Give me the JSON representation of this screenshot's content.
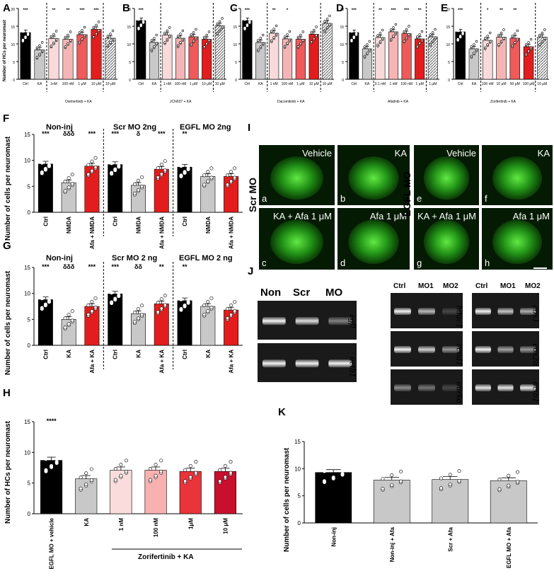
{
  "figure": {
    "panel_labels": [
      "A",
      "B",
      "C",
      "D",
      "E",
      "F",
      "G",
      "H",
      "I",
      "J",
      "K"
    ]
  },
  "panels": {
    "A": {
      "ylabel": "Number of HCs per neuromast",
      "group": "Osimertinib + KA"
    },
    "B": {
      "group": "JCN037 + KA"
    },
    "C": {
      "group": "Dacomitinib + KA"
    },
    "D": {
      "group": "Afatinib + KA"
    },
    "E": {
      "group": "Zorifertinib + KA"
    },
    "F": {
      "ylabel": "Number of cells per neuromast",
      "groups": [
        "Non-inj",
        "Scr MO 2ng",
        "EGFL MO 2ng"
      ]
    },
    "G": {
      "ylabel": "Number of cells per neuromast",
      "groups": [
        "Non-inj",
        "Scr MO 2 ng",
        "EGFL MO 2 ng"
      ]
    },
    "H": {
      "ylabel": "Number of HCs per neuromast",
      "group": "Zorifertinib + KA"
    },
    "I": {
      "left_label": "Scr MO",
      "right_label": "EGFL MO",
      "tiles": [
        {
          "letter": "a",
          "text": "Vehicle"
        },
        {
          "letter": "b",
          "text": "KA"
        },
        {
          "letter": "c",
          "text": "KA + Afa  1 μM"
        },
        {
          "letter": "d",
          "text": "Afa 1 μM"
        },
        {
          "letter": "e",
          "text": "Vehicle"
        },
        {
          "letter": "f",
          "text": "KA"
        },
        {
          "letter": "g",
          "text": "KA + Afa  1 μM"
        },
        {
          "letter": "h",
          "text": "Afa 1 μM"
        }
      ]
    },
    "J": {
      "left_headers": [
        "Non",
        "Scr",
        "MO"
      ],
      "left_genes": [
        "egfl",
        "actb1"
      ],
      "mid_headers": [
        "Ctrl",
        "MO1",
        "MO2"
      ],
      "mid_genes": [
        "hdac1",
        "ccnd1",
        "aurka"
      ],
      "right_headers": [
        "Ctrl",
        "MO1",
        "MO2"
      ],
      "right_genes": [
        "cox1",
        "cox2a",
        "actb1"
      ]
    },
    "K": {
      "ylabel": "Number of cells per neuromast"
    }
  },
  "chart_data": [
    {
      "panel": "A",
      "type": "bar",
      "ylim": [
        0,
        20
      ],
      "yticks": [
        0,
        5,
        10,
        15,
        20
      ],
      "categories": [
        "Ctrl",
        "KA",
        "1nM",
        "100 nM",
        "1 μM",
        "10 μM",
        "10 μM"
      ],
      "values": [
        13.2,
        8.3,
        11.5,
        11.3,
        12.6,
        14.1,
        11.6
      ],
      "colors": [
        "#000000",
        "#c8c8c8",
        "#f9dada",
        "#f6b5b5",
        "#ef5a5a",
        "#e31d1d",
        "#cccccc"
      ],
      "hatched": [
        false,
        false,
        false,
        false,
        false,
        false,
        true
      ],
      "significance": [
        "***",
        "",
        "**",
        "**",
        "***",
        "***",
        ""
      ]
    },
    {
      "panel": "B",
      "type": "bar",
      "ylim": [
        0,
        20
      ],
      "yticks": [
        0,
        5,
        10,
        15,
        20
      ],
      "categories": [
        "Ctrl",
        "KA",
        "1 nM",
        "100 nM",
        "1 μM",
        "10 μM",
        "10 μM"
      ],
      "values": [
        16.6,
        10.4,
        12.5,
        11.6,
        12.0,
        11.3,
        15.1
      ],
      "colors": [
        "#000000",
        "#c8c8c8",
        "#f9dada",
        "#f6b5b5",
        "#ef5a5a",
        "#e31d1d",
        "#cccccc"
      ],
      "hatched": [
        false,
        false,
        false,
        false,
        false,
        false,
        true
      ],
      "significance": [
        "***",
        "",
        "",
        "",
        "",
        "",
        ""
      ]
    },
    {
      "panel": "C",
      "type": "bar",
      "ylim": [
        0,
        20
      ],
      "yticks": [
        0,
        5,
        10,
        15,
        20
      ],
      "categories": [
        "Ctrl",
        "KA",
        "1 nM",
        "100 nM",
        "1 μM",
        "10 μM",
        "10 μM"
      ],
      "values": [
        16.6,
        10.4,
        13.0,
        11.4,
        11.3,
        12.7,
        15.8
      ],
      "colors": [
        "#000000",
        "#c8c8c8",
        "#f9dada",
        "#f6b5b5",
        "#ef5a5a",
        "#e31d1d",
        "#cccccc"
      ],
      "hatched": [
        false,
        false,
        false,
        false,
        false,
        false,
        true
      ],
      "significance": [
        "***",
        "",
        "**",
        "*",
        "",
        "",
        ""
      ]
    },
    {
      "panel": "D",
      "type": "bar",
      "ylim": [
        0,
        20
      ],
      "yticks": [
        0,
        5,
        10,
        15,
        20
      ],
      "categories": [
        "Ctrl",
        "KA",
        "0.1 nM",
        "1 nM",
        "100 nM",
        "1 μM",
        "1 μM"
      ],
      "values": [
        13.2,
        8.6,
        11.8,
        13.4,
        12.9,
        11.4,
        12.0
      ],
      "colors": [
        "#000000",
        "#c8c8c8",
        "#f9dada",
        "#f6b5b5",
        "#ef5a5a",
        "#e31d1d",
        "#cccccc"
      ],
      "hatched": [
        false,
        false,
        false,
        false,
        false,
        false,
        true
      ],
      "significance": [
        "***",
        "",
        "**",
        "***",
        "***",
        "**",
        ""
      ]
    },
    {
      "panel": "E",
      "type": "bar",
      "ylim": [
        0,
        20
      ],
      "yticks": [
        0,
        5,
        10,
        15,
        20
      ],
      "categories": [
        "Ctrl",
        "KA",
        "100 nM",
        "10 μM",
        "50 μM",
        "100 μM",
        "10 μM"
      ],
      "values": [
        13.4,
        8.6,
        11.0,
        11.9,
        11.6,
        9.2,
        11.9
      ],
      "colors": [
        "#000000",
        "#c8c8c8",
        "#f9dada",
        "#f6b5b5",
        "#ef5a5a",
        "#e31d1d",
        "#cccccc"
      ],
      "hatched": [
        false,
        false,
        false,
        false,
        false,
        false,
        true
      ],
      "significance": [
        "***",
        "",
        "*",
        "**",
        "**",
        "",
        ""
      ]
    },
    {
      "panel": "F",
      "type": "bar",
      "ylim": [
        0,
        15
      ],
      "yticks": [
        0,
        5,
        10,
        15
      ],
      "categories": [
        "Ctrl",
        "NMDA",
        "Afa + NMDA",
        "Ctrl",
        "NMDA",
        "Afa + NMDA",
        "Ctrl",
        "NMDA",
        "Afa + NMDA"
      ],
      "values": [
        9.3,
        5.7,
        8.9,
        9.2,
        5.2,
        8.3,
        8.7,
        6.9,
        6.9
      ],
      "colors": [
        "#000000",
        "#c8c8c8",
        "#e31d1d",
        "#000000",
        "#c8c8c8",
        "#e31d1d",
        "#000000",
        "#c8c8c8",
        "#e31d1d"
      ],
      "significance": [
        "***",
        "δδδ",
        "***",
        "***",
        "δ",
        "***",
        "**",
        "",
        ""
      ]
    },
    {
      "panel": "G",
      "type": "bar",
      "ylim": [
        0,
        15
      ],
      "yticks": [
        0,
        5,
        10,
        15
      ],
      "categories": [
        "Ctrl",
        "KA",
        "Afa + KA",
        "Ctrl",
        "KA",
        "Afa + KA",
        "Ctrl",
        "KA",
        "Afa + KA"
      ],
      "values": [
        8.8,
        5.0,
        7.5,
        9.9,
        6.1,
        8.0,
        8.6,
        7.5,
        6.8
      ],
      "colors": [
        "#000000",
        "#c8c8c8",
        "#e31d1d",
        "#000000",
        "#c8c8c8",
        "#e31d1d",
        "#000000",
        "#c8c8c8",
        "#e31d1d"
      ],
      "significance": [
        "***",
        "δδδ",
        "***",
        "***",
        "δδ",
        "**",
        "**",
        "",
        ""
      ]
    },
    {
      "panel": "H",
      "type": "bar",
      "ylim": [
        0,
        15
      ],
      "yticks": [
        0,
        5,
        10,
        15
      ],
      "categories": [
        "EGFL MO + vehicle",
        "KA",
        "1 nM",
        "100 nM",
        "1μM",
        "10 μM"
      ],
      "values": [
        8.7,
        5.7,
        7.1,
        7.1,
        6.9,
        6.9
      ],
      "colors": [
        "#000000",
        "#c8c8c8",
        "#fadcdc",
        "#f7b1b1",
        "#e8343a",
        "#c8102e"
      ],
      "significance": [
        "****",
        "",
        "",
        "",
        "",
        ""
      ]
    },
    {
      "panel": "K",
      "type": "bar",
      "ylim": [
        0,
        15
      ],
      "yticks": [
        0,
        5,
        10,
        15
      ],
      "categories": [
        "Non-inj",
        "Non-inj + Afa",
        "Scr + Afa",
        "EGFL MO + Afa"
      ],
      "values": [
        9.3,
        7.9,
        8.0,
        7.8
      ],
      "colors": [
        "#000000",
        "#c8c8c8",
        "#c8c8c8",
        "#c8c8c8"
      ],
      "significance": [
        "",
        "",
        "",
        ""
      ]
    }
  ]
}
